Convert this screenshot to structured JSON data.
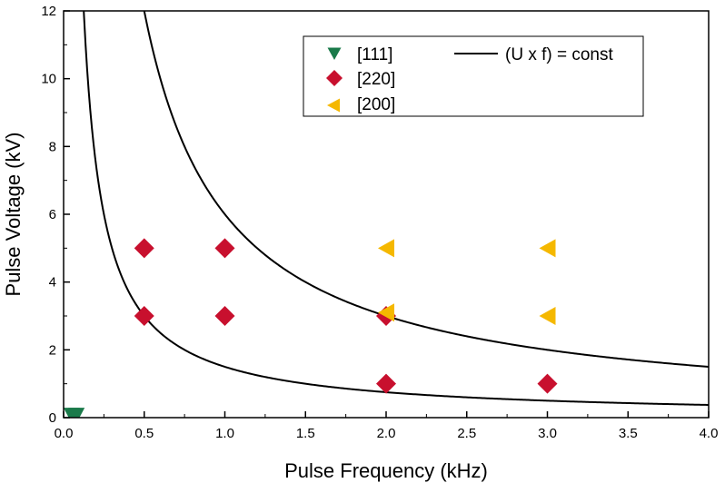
{
  "chart_data": {
    "type": "scatter",
    "xlabel": "Pulse Frequency (kHz)",
    "ylabel": "Pulse Voltage (kV)",
    "xlim": [
      0.0,
      4.0
    ],
    "ylim": [
      0,
      12
    ],
    "x_ticks": [
      "0.0",
      "0.5",
      "1.0",
      "1.5",
      "2.0",
      "2.5",
      "3.0",
      "3.5",
      "4.0"
    ],
    "y_ticks": [
      "0",
      "2",
      "4",
      "6",
      "8",
      "10",
      "12"
    ],
    "grid": false,
    "legend_position": "top-right",
    "series": [
      {
        "name": "[111]",
        "marker": "triangle-down",
        "color": "#1a7a4a",
        "points": [
          {
            "x": 0.05,
            "y": 0.05
          },
          {
            "x": 0.08,
            "y": 0.05
          }
        ]
      },
      {
        "name": "[220]",
        "marker": "diamond",
        "color": "#c8102e",
        "points": [
          {
            "x": 0.5,
            "y": 5
          },
          {
            "x": 1.0,
            "y": 5
          },
          {
            "x": 0.5,
            "y": 3
          },
          {
            "x": 1.0,
            "y": 3
          },
          {
            "x": 2.0,
            "y": 3
          },
          {
            "x": 2.0,
            "y": 1
          },
          {
            "x": 3.0,
            "y": 1
          }
        ]
      },
      {
        "name": "[200]",
        "marker": "triangle-left",
        "color": "#f5b800",
        "points": [
          {
            "x": 2.0,
            "y": 5
          },
          {
            "x": 3.0,
            "y": 5
          },
          {
            "x": 2.0,
            "y": 3.1
          },
          {
            "x": 3.0,
            "y": 3
          }
        ]
      }
    ],
    "curves": [
      {
        "name": "(U x f) = const",
        "const": 1.5,
        "color": "#000000"
      },
      {
        "name": "(U x f) = const",
        "const": 6,
        "color": "#000000"
      }
    ]
  }
}
